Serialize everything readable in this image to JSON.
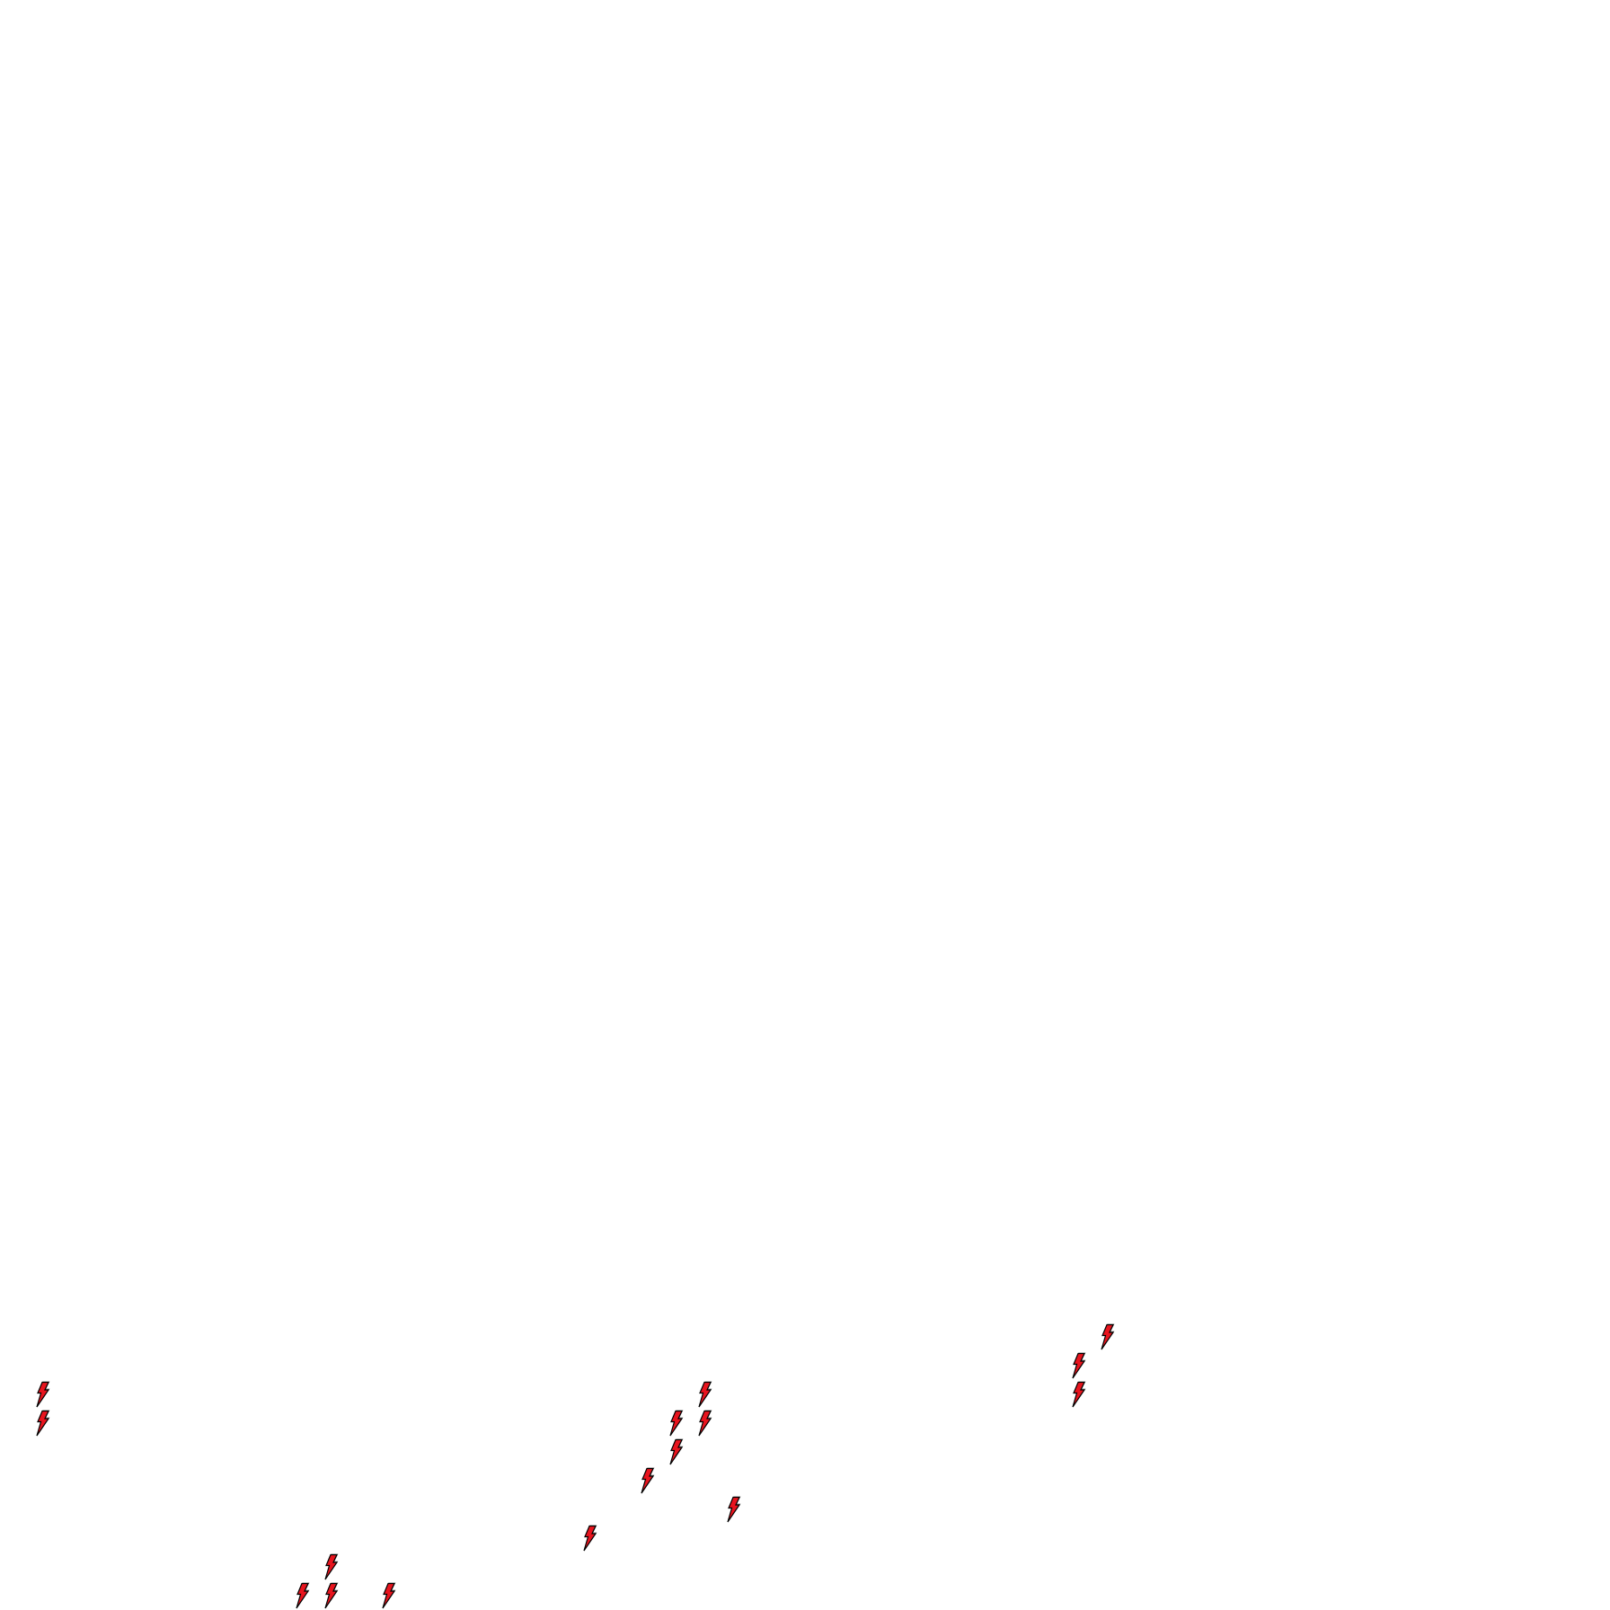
{
  "board": {
    "background": "#ffffff",
    "icon": "lightning-bolt-icon",
    "icon_fill": "#e8141e",
    "icon_stroke": "#000000"
  }
}
